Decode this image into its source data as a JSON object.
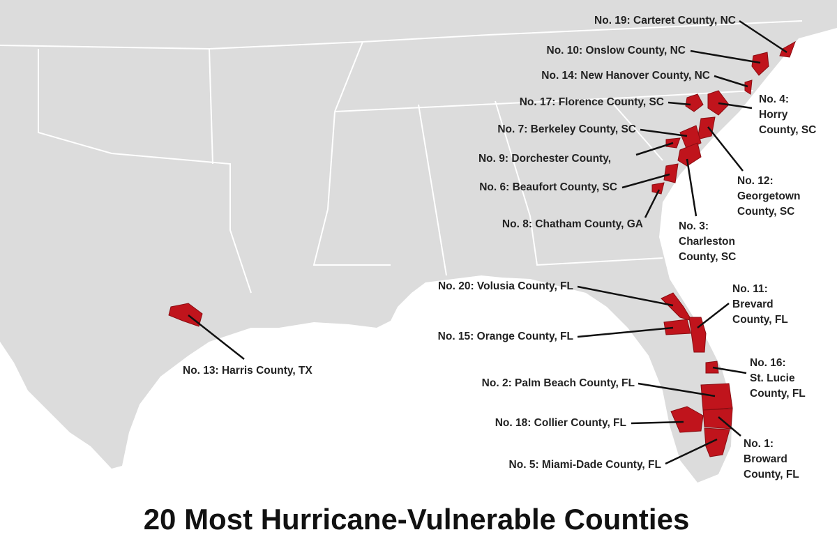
{
  "title": "20 Most Hurricane-Vulnerable Counties",
  "labels": [
    {
      "lines": [
        "No. 19: Carteret County, NC"
      ]
    },
    {
      "lines": [
        "No. 10: Onslow County, NC"
      ]
    },
    {
      "lines": [
        "No. 14: New Hanover County, NC"
      ]
    },
    {
      "lines": [
        "No. 17: Florence County, SC"
      ]
    },
    {
      "lines": [
        "No. 4:",
        "Horry",
        "County, SC"
      ]
    },
    {
      "lines": [
        "No. 7: Berkeley County, SC"
      ]
    },
    {
      "lines": [
        "No. 9: Dorchester County,"
      ]
    },
    {
      "lines": [
        "No. 12:",
        "Georgetown",
        "County, SC"
      ]
    },
    {
      "lines": [
        "No. 6: Beaufort County, SC"
      ]
    },
    {
      "lines": [
        "No. 8: Chatham County, GA"
      ]
    },
    {
      "lines": [
        "No. 3:",
        "Charleston",
        "County, SC"
      ]
    },
    {
      "lines": [
        "No. 20: Volusia County, FL"
      ]
    },
    {
      "lines": [
        "No. 11:",
        "Brevard",
        "County, FL"
      ]
    },
    {
      "lines": [
        "No. 15: Orange County, FL"
      ]
    },
    {
      "lines": [
        "No. 13: Harris County, TX"
      ]
    },
    {
      "lines": [
        "No. 16:",
        "St. Lucie",
        "County, FL"
      ]
    },
    {
      "lines": [
        "No. 2: Palm Beach County, FL"
      ]
    },
    {
      "lines": [
        "No. 18: Collier County, FL"
      ]
    },
    {
      "lines": [
        "No. 1:",
        "Broward",
        "County, FL"
      ]
    },
    {
      "lines": [
        "No. 5: Miami-Dade County, FL"
      ]
    }
  ]
}
